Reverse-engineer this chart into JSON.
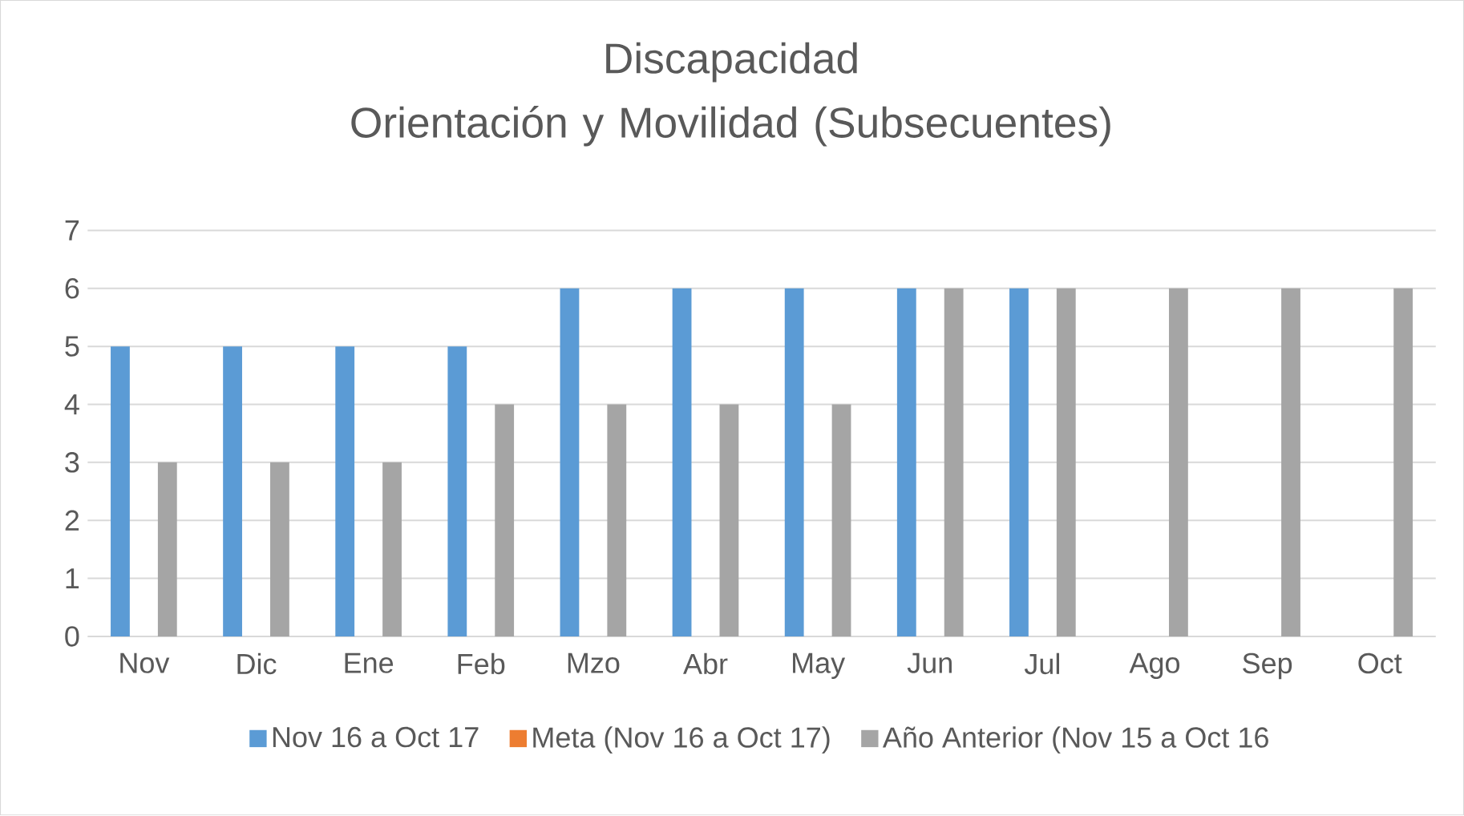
{
  "chart_data": {
    "type": "bar",
    "title": "Discapacidad\nOrientación y Movilidad (Subsecuentes)",
    "categories": [
      "Nov",
      "Dic",
      "Ene",
      "Feb",
      "Mzo",
      "Abr",
      "May",
      "Jun",
      "Jul",
      "Ago",
      "Sep",
      "Oct"
    ],
    "series": [
      {
        "name": "Nov 16 a Oct 17",
        "color": "#5b9bd5",
        "values": [
          5,
          5,
          5,
          5,
          6,
          6,
          6,
          6,
          6,
          null,
          null,
          null
        ]
      },
      {
        "name": "Meta (Nov 16 a Oct 17)",
        "color": "#ed7d31",
        "values": [
          null,
          null,
          null,
          null,
          null,
          null,
          null,
          null,
          null,
          null,
          null,
          null
        ]
      },
      {
        "name": "Año Anterior (Nov 15 a Oct 16",
        "color": "#a5a5a5",
        "values": [
          3,
          3,
          3,
          4,
          4,
          4,
          4,
          6,
          6,
          6,
          6,
          6
        ]
      }
    ],
    "ylim": [
      0,
      7
    ],
    "yticks": [
      0,
      1,
      2,
      3,
      4,
      5,
      6,
      7
    ],
    "grid": "y",
    "legend": "bottom"
  }
}
